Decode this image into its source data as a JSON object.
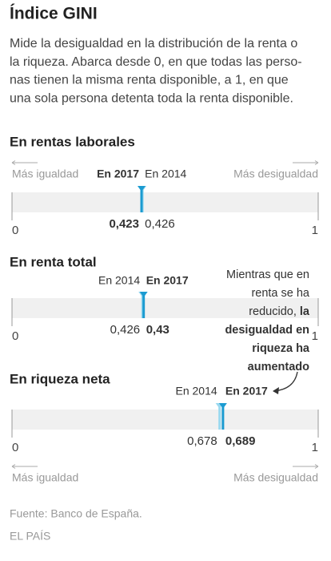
{
  "title": "Índice GINI",
  "description": [
    "Mide la desigualdad en la distribución de la renta o",
    "la riqueza. Abarca desde 0, en que todas las perso-",
    "nas tienen la misma renta disponible, a 1, en que",
    "una sola persona detenta toda la renta disponible."
  ],
  "chart_data": [
    {
      "type": "strip",
      "title": "En rentas laborales",
      "xlim": [
        0,
        1
      ],
      "xticks": [
        0,
        1
      ],
      "end_labels": [
        "Más igualdad",
        "Más desigualdad"
      ],
      "end_labels_position": "top",
      "series": [
        {
          "name": "En 2017",
          "color": "#1b9bd1",
          "bold": true,
          "values": [
            0.423
          ],
          "value_labels": [
            "0,423"
          ]
        },
        {
          "name": "En 2014",
          "color": "#9ad9f0",
          "bold": false,
          "values": [
            0.426
          ],
          "value_labels": [
            "0,426"
          ]
        }
      ]
    },
    {
      "type": "strip",
      "title": "En renta total",
      "xlim": [
        0,
        1
      ],
      "xticks": [
        0,
        1
      ],
      "series": [
        {
          "name": "En 2017",
          "color": "#1b9bd1",
          "bold": true,
          "values": [
            0.43
          ],
          "value_labels": [
            "0,43"
          ]
        },
        {
          "name": "En 2014",
          "color": "#9ad9f0",
          "bold": false,
          "values": [
            0.426
          ],
          "value_labels": [
            "0,426"
          ]
        }
      ],
      "annotation": [
        [
          {
            "text": "Mientras que en",
            "bold": false
          }
        ],
        [
          {
            "text": "renta se ha",
            "bold": false
          }
        ],
        [
          {
            "text": "reducido,",
            "bold": false
          },
          {
            "text": " la",
            "bold": true
          }
        ],
        [
          {
            "text": "desigualdad en",
            "bold": true
          }
        ],
        [
          {
            "text": "riqueza ha",
            "bold": true
          }
        ],
        [
          {
            "text": "aumentado",
            "bold": true
          }
        ]
      ]
    },
    {
      "type": "strip",
      "title": "En riqueza neta",
      "xlim": [
        0,
        1
      ],
      "xticks": [
        0,
        1
      ],
      "end_labels": [
        "Más igualdad",
        "Más desigualdad"
      ],
      "end_labels_position": "bottom",
      "series": [
        {
          "name": "En 2017",
          "color": "#1b9bd1",
          "bold": true,
          "values": [
            0.689
          ],
          "value_labels": [
            "0,689"
          ]
        },
        {
          "name": "En 2014",
          "color": "#9ad9f0",
          "bold": false,
          "values": [
            0.678
          ],
          "value_labels": [
            "0,678"
          ]
        }
      ]
    }
  ],
  "source": "Fuente: Banco de España.",
  "credit": "EL PAÍS"
}
